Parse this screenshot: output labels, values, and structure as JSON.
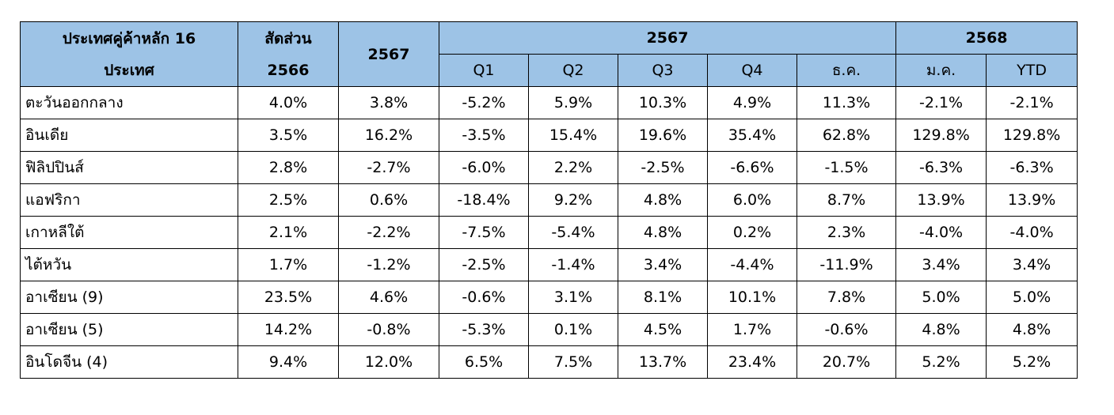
{
  "header": {
    "country_label_line1": "ประเทศคู่ค้าหลัก 16",
    "country_label_line2": "ประเทศ",
    "share_label_line1": "สัดส่วน",
    "share_label_line2": "2566",
    "year_2567": "2567",
    "group_2567": "2567",
    "group_2568": "2568",
    "q1": "Q1",
    "q2": "Q2",
    "q3": "Q3",
    "q4": "Q4",
    "dec": "ธ.ค.",
    "jan": "ม.ค.",
    "ytd": "YTD"
  },
  "rows": [
    {
      "country": "ตะวันออกกลาง",
      "share_2566": "4.0%",
      "y2567": "3.8%",
      "q1": "-5.2%",
      "q2": "5.9%",
      "q3": "10.3%",
      "q4": "4.9%",
      "dec": "11.3%",
      "jan": "-2.1%",
      "ytd": "-2.1%"
    },
    {
      "country": "อินเดีย",
      "share_2566": "3.5%",
      "y2567": "16.2%",
      "q1": "-3.5%",
      "q2": "15.4%",
      "q3": "19.6%",
      "q4": "35.4%",
      "dec": "62.8%",
      "jan": "129.8%",
      "ytd": "129.8%"
    },
    {
      "country": "ฟิลิปปินส์",
      "share_2566": "2.8%",
      "y2567": "-2.7%",
      "q1": "-6.0%",
      "q2": "2.2%",
      "q3": "-2.5%",
      "q4": "-6.6%",
      "dec": "-1.5%",
      "jan": "-6.3%",
      "ytd": "-6.3%"
    },
    {
      "country": "แอฟริกา",
      "share_2566": "2.5%",
      "y2567": "0.6%",
      "q1": "-18.4%",
      "q2": "9.2%",
      "q3": "4.8%",
      "q4": "6.0%",
      "dec": "8.7%",
      "jan": "13.9%",
      "ytd": "13.9%"
    },
    {
      "country": "เกาหลีใต้",
      "share_2566": "2.1%",
      "y2567": "-2.2%",
      "q1": "-7.5%",
      "q2": "-5.4%",
      "q3": "4.8%",
      "q4": "0.2%",
      "dec": "2.3%",
      "jan": "-4.0%",
      "ytd": "-4.0%"
    },
    {
      "country": "ไต้หวัน",
      "share_2566": "1.7%",
      "y2567": "-1.2%",
      "q1": "-2.5%",
      "q2": "-1.4%",
      "q3": "3.4%",
      "q4": "-4.4%",
      "dec": "-11.9%",
      "jan": "3.4%",
      "ytd": "3.4%"
    },
    {
      "country": "อาเซียน (9)",
      "share_2566": "23.5%",
      "y2567": "4.6%",
      "q1": "-0.6%",
      "q2": "3.1%",
      "q3": "8.1%",
      "q4": "10.1%",
      "dec": "7.8%",
      "jan": "5.0%",
      "ytd": "5.0%"
    },
    {
      "country": "อาเซียน (5)",
      "share_2566": "14.2%",
      "y2567": "-0.8%",
      "q1": "-5.3%",
      "q2": "0.1%",
      "q3": "4.5%",
      "q4": "1.7%",
      "dec": "-0.6%",
      "jan": "4.8%",
      "ytd": "4.8%"
    },
    {
      "country": "อินโดจีน (4)",
      "share_2566": "9.4%",
      "y2567": "12.0%",
      "q1": "6.5%",
      "q2": "7.5%",
      "q3": "13.7%",
      "q4": "23.4%",
      "dec": "20.7%",
      "jan": "5.2%",
      "ytd": "5.2%"
    }
  ],
  "colors": {
    "header_background": "#9dc3e6",
    "border": "#000000"
  }
}
